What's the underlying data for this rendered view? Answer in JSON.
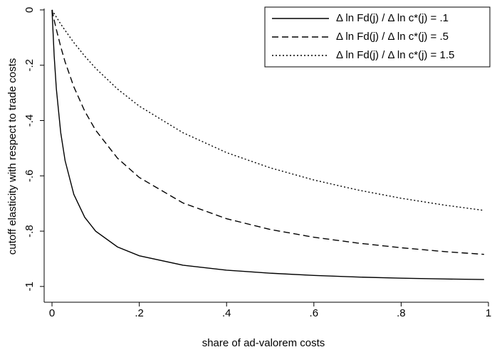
{
  "chart_data": {
    "type": "line",
    "x_label": "share of ad-valorem costs",
    "y_label": "cutoff elasticity with respect to  trade costs",
    "x": [
      0,
      0.005,
      0.01,
      0.02,
      0.03,
      0.05,
      0.075,
      0.1,
      0.15,
      0.2,
      0.3,
      0.4,
      0.5,
      0.6,
      0.7,
      0.8,
      0.9,
      0.99
    ],
    "series": [
      {
        "name": "Δ ln Fd(j) / Δ ln c*(j) = .1",
        "color": "#000000",
        "dash": "solid",
        "values": [
          0,
          -0.167,
          -0.286,
          -0.444,
          -0.545,
          -0.667,
          -0.75,
          -0.8,
          -0.857,
          -0.889,
          -0.923,
          -0.941,
          -0.952,
          -0.96,
          -0.966,
          -0.97,
          -0.973,
          -0.975
        ]
      },
      {
        "name": "Δ ln Fd(j) / Δ ln c*(j) = .5",
        "color": "#000000",
        "dash": "dashed",
        "values": [
          0,
          -0.037,
          -0.071,
          -0.133,
          -0.188,
          -0.278,
          -0.366,
          -0.435,
          -0.536,
          -0.606,
          -0.698,
          -0.755,
          -0.794,
          -0.822,
          -0.843,
          -0.86,
          -0.874,
          -0.884
        ]
      },
      {
        "name": "Δ ln Fd(j) / Δ ln c*(j) = 1.5",
        "color": "#000000",
        "dash": "dotted",
        "values": [
          0,
          -0.013,
          -0.026,
          -0.051,
          -0.074,
          -0.118,
          -0.167,
          -0.211,
          -0.286,
          -0.348,
          -0.444,
          -0.516,
          -0.571,
          -0.615,
          -0.651,
          -0.681,
          -0.706,
          -0.725
        ]
      }
    ],
    "xlim": [
      -0.018,
      1.0
    ],
    "ylim": [
      -1.057,
      0.005
    ],
    "xticks": [
      0,
      {
        "value": 0.2,
        "label": ".2"
      },
      {
        "value": 0.4,
        "label": ".4"
      },
      {
        "value": 0.6,
        "label": ".6"
      },
      {
        "value": 0.8,
        "label": ".8"
      },
      1
    ],
    "yticks": [
      0,
      {
        "value": -0.2,
        "label": "-.2"
      },
      {
        "value": -0.4,
        "label": "-.4"
      },
      {
        "value": -0.6,
        "label": "-.6"
      },
      {
        "value": -0.8,
        "label": "-.8"
      },
      {
        "value": -1,
        "label": "-1"
      }
    ],
    "grid": false,
    "legend": "top-right"
  }
}
